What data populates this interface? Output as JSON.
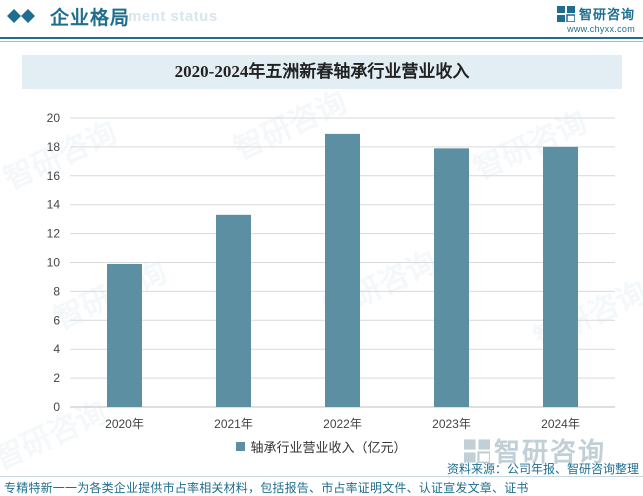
{
  "header": {
    "title": "企业格局",
    "ghost_text": "ment status",
    "brand_name": "智研咨询",
    "brand_url": "www.chyxx.com"
  },
  "footer": {
    "source": "资料来源：公司年报、智研咨询整理",
    "slogan": "专精特新一一为各类企业提供市占率相关材料，包括报告、市占率证明文件、认证宣发文章、证书",
    "watermark": "智研咨询"
  },
  "colors": {
    "brand": "#1f6e8f",
    "bar": "#5d8fa2",
    "title_bg": "#e3eef4"
  },
  "icons": {
    "header_marker": "double-diamond-icon",
    "brand_logo": "chyxx-logo-icon"
  },
  "chart_data": {
    "type": "bar",
    "title": "2020-2024年五洲新春轴承行业营业收入",
    "categories": [
      "2020年",
      "2021年",
      "2022年",
      "2023年",
      "2024年"
    ],
    "series": [
      {
        "name": "轴承行业营业收入（亿元）",
        "values": [
          9.9,
          13.3,
          18.9,
          17.9,
          18.0
        ]
      }
    ],
    "yticks": [
      "0",
      "2",
      "4",
      "6",
      "8",
      "10",
      "12",
      "14",
      "16",
      "18",
      "20"
    ],
    "ylim": [
      0,
      20
    ],
    "grid": true,
    "legend_position": "bottom"
  }
}
